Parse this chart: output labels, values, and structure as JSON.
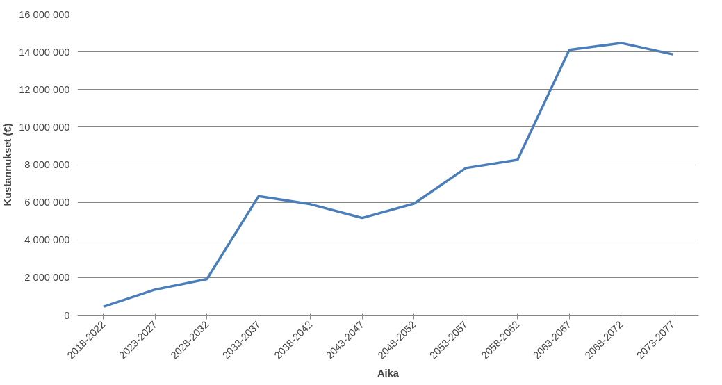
{
  "chart_data": {
    "type": "line",
    "xlabel": "Aika",
    "ylabel": "Kustannukset (€)",
    "categories": [
      "2018-2022",
      "2023-2027",
      "2028-2032",
      "2033-2037",
      "2038-2042",
      "2043-2047",
      "2048-2052",
      "2053-2057",
      "2058-2062",
      "2063-2067",
      "2068-2072",
      "2073-2077"
    ],
    "series": [
      {
        "color": "#4a7ebb",
        "values": [
          450000,
          1360000,
          1920000,
          6330000,
          5900000,
          5170000,
          5930000,
          7820000,
          8260000,
          14110000,
          14470000,
          13870000
        ]
      }
    ],
    "ylim": [
      0,
      16000000
    ],
    "yticks": [
      {
        "value": 0,
        "label": "0"
      },
      {
        "value": 2000000,
        "label": "2 000 000"
      },
      {
        "value": 4000000,
        "label": "4 000 000"
      },
      {
        "value": 6000000,
        "label": "6 000 000"
      },
      {
        "value": 8000000,
        "label": "8 000 000"
      },
      {
        "value": 10000000,
        "label": "10 000 000"
      },
      {
        "value": 12000000,
        "label": "12 000 000"
      },
      {
        "value": 14000000,
        "label": "14 000 000"
      },
      {
        "value": 16000000,
        "label": "16 000 000"
      }
    ],
    "grid": "y",
    "marker": "none",
    "line_style": "solid"
  }
}
